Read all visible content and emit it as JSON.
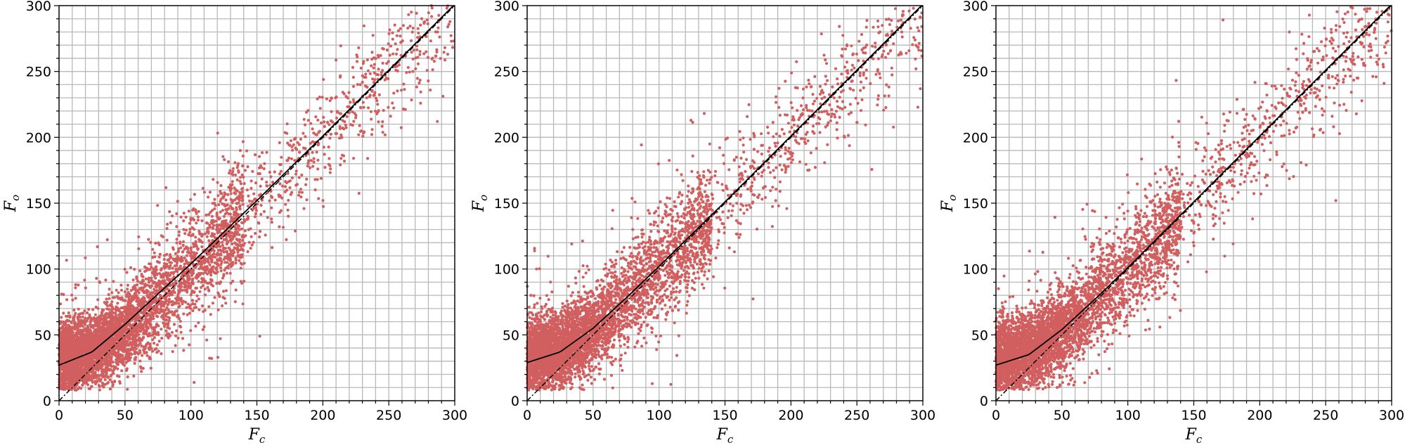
{
  "figure": {
    "background": "#ffffff"
  },
  "chart_data": [
    {
      "type": "scatter",
      "xlabel": "F",
      "xlabel_sub": "c",
      "ylabel": "F",
      "ylabel_sub": "o",
      "xlim": [
        0,
        300
      ],
      "ylim": [
        0,
        300
      ],
      "xticks": [
        0,
        50,
        100,
        150,
        200,
        250,
        300
      ],
      "yticks": [
        0,
        50,
        100,
        150,
        200,
        250,
        300
      ],
      "grid": true,
      "grid_spacing": {
        "major": 50,
        "minor_every": 10
      },
      "point_color": "#d15f5f",
      "point_count_approx": 5200,
      "reference_line": {
        "style": "dashed",
        "x": [
          0,
          300
        ],
        "y": [
          0,
          300
        ]
      },
      "fit_curve": {
        "style": "solid",
        "x": [
          0,
          25,
          50,
          75,
          100,
          150,
          200,
          250,
          300
        ],
        "y": [
          27,
          37,
          58,
          81,
          104,
          152,
          201,
          251,
          301
        ]
      },
      "scatter_envelope": {
        "x": [
          0,
          25,
          50,
          75,
          100,
          150,
          200,
          250,
          300
        ],
        "y_mean": [
          30,
          37,
          52,
          76,
          101,
          149,
          200,
          249,
          296
        ],
        "y_spread": [
          15,
          14,
          15,
          18,
          20,
          20,
          20,
          22,
          24
        ]
      }
    },
    {
      "type": "scatter",
      "xlabel": "F",
      "xlabel_sub": "c",
      "ylabel": "F",
      "ylabel_sub": "o",
      "xlim": [
        0,
        300
      ],
      "ylim": [
        0,
        300
      ],
      "xticks": [
        0,
        50,
        100,
        150,
        200,
        250,
        300
      ],
      "yticks": [
        0,
        50,
        100,
        150,
        200,
        250,
        300
      ],
      "grid": true,
      "grid_spacing": {
        "major": 50,
        "minor_every": 10
      },
      "point_color": "#d15f5f",
      "point_count_approx": 5200,
      "reference_line": {
        "style": "dashed",
        "x": [
          0,
          300
        ],
        "y": [
          0,
          300
        ]
      },
      "fit_curve": {
        "style": "solid",
        "x": [
          0,
          25,
          50,
          75,
          100,
          150,
          200,
          250,
          300
        ],
        "y": [
          29,
          37,
          55,
          78,
          102,
          151,
          201,
          251,
          301
        ]
      },
      "scatter_envelope": {
        "x": [
          0,
          25,
          50,
          75,
          100,
          150,
          200,
          250,
          300
        ],
        "y_mean": [
          32,
          38,
          53,
          77,
          101,
          150,
          199,
          248,
          295
        ],
        "y_spread": [
          15,
          14,
          15,
          18,
          20,
          20,
          20,
          22,
          24
        ]
      }
    },
    {
      "type": "scatter",
      "xlabel": "F",
      "xlabel_sub": "c",
      "ylabel": "F",
      "ylabel_sub": "o",
      "xlim": [
        0,
        300
      ],
      "ylim": [
        0,
        300
      ],
      "xticks": [
        0,
        50,
        100,
        150,
        200,
        250,
        300
      ],
      "yticks": [
        0,
        50,
        100,
        150,
        200,
        250,
        300
      ],
      "grid": true,
      "grid_spacing": {
        "major": 50,
        "minor_every": 10
      },
      "point_color": "#d15f5f",
      "point_count_approx": 5200,
      "reference_line": {
        "style": "dashed",
        "x": [
          0,
          300
        ],
        "y": [
          0,
          300
        ]
      },
      "fit_curve": {
        "style": "solid",
        "x": [
          0,
          25,
          50,
          75,
          100,
          150,
          200,
          250,
          300
        ],
        "y": [
          27,
          35,
          54,
          77,
          101,
          151,
          201,
          251,
          301
        ]
      },
      "scatter_envelope": {
        "x": [
          0,
          25,
          50,
          75,
          100,
          150,
          200,
          250,
          300
        ],
        "y_mean": [
          30,
          37,
          52,
          76,
          100,
          149,
          199,
          249,
          296
        ],
        "y_spread": [
          15,
          14,
          15,
          18,
          20,
          20,
          20,
          22,
          24
        ]
      }
    }
  ]
}
